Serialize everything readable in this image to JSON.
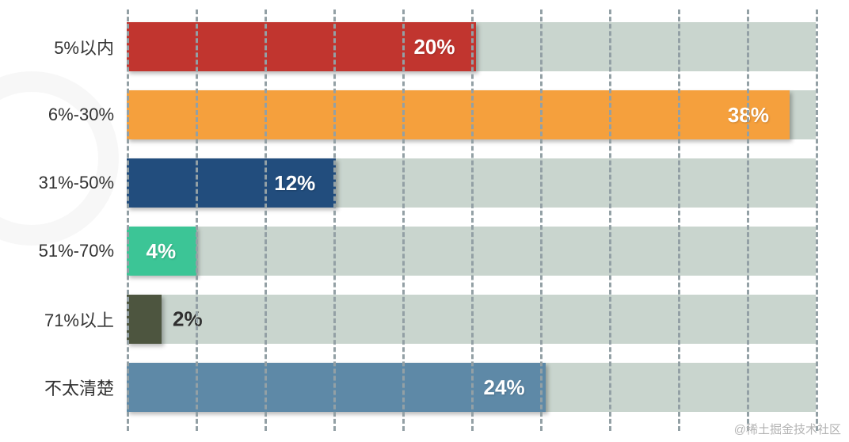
{
  "chart_data": {
    "type": "bar",
    "orientation": "horizontal",
    "title": "",
    "xlabel": "",
    "ylabel": "",
    "categories": [
      "5%以内",
      "6%-30%",
      "31%-50%",
      "51%-70%",
      "71%以上",
      "不太清楚"
    ],
    "values": [
      20,
      38,
      12,
      4,
      2,
      24
    ],
    "value_labels": [
      "20%",
      "38%",
      "12%",
      "4%",
      "2%",
      "24%"
    ],
    "colors": [
      "#c1352f",
      "#f5a03d",
      "#224d7d",
      "#3cc596",
      "#4d553f",
      "#5e89a7"
    ],
    "track_color": "#c9d5ce",
    "xlim": [
      0,
      39.5
    ],
    "gridline_count": 10,
    "grid_on": true,
    "legend_position": "none"
  },
  "watermark": "@稀土掘金技术社区"
}
